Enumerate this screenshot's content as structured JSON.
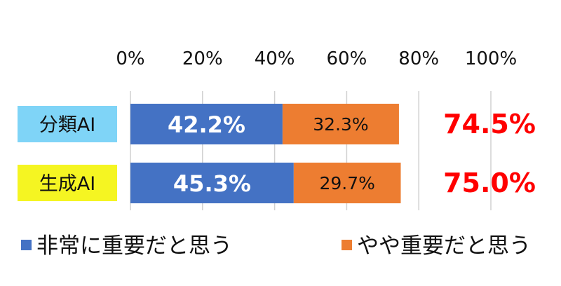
{
  "chart_data": {
    "type": "bar",
    "orientation": "horizontal",
    "stacked": true,
    "categories": [
      "分類AI",
      "生成AI"
    ],
    "category_colors": [
      "#7fd4f7",
      "#f5f522"
    ],
    "series": [
      {
        "name": "非常に重要だと思う",
        "values": [
          42.2,
          45.3
        ],
        "labels": [
          "42.2%",
          "45.3%"
        ],
        "color": "#4472c4"
      },
      {
        "name": "やや重要だと思う",
        "values": [
          32.3,
          29.7
        ],
        "labels": [
          "32.3%",
          "29.7%"
        ],
        "color": "#ed7d31"
      }
    ],
    "totals": [
      "74.5%",
      "75.0%"
    ],
    "total_color": "#ff0000",
    "x_ticks": [
      0,
      20,
      40,
      60,
      80,
      100
    ],
    "x_tick_labels": [
      "0%",
      "20%",
      "40%",
      "60%",
      "80%",
      "100%"
    ],
    "xlim": [
      0,
      100
    ],
    "grid": true,
    "legend_position": "bottom"
  }
}
